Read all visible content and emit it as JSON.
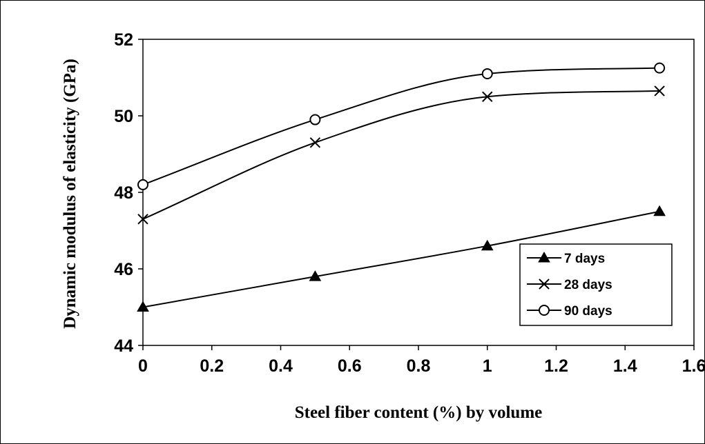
{
  "chart_data": {
    "type": "line",
    "title": "",
    "xlabel": "Steel fiber content (%) by volume",
    "ylabel": "Dynamic modulus of elasticity (GPa)",
    "xlim": [
      0,
      1.6
    ],
    "ylim": [
      44,
      52
    ],
    "xticks": [
      "0",
      "0.2",
      "0.4",
      "0.6",
      "0.8",
      "1",
      "1.2",
      "1.4",
      "1.6"
    ],
    "yticks": [
      "44",
      "46",
      "48",
      "50",
      "52"
    ],
    "x": [
      0,
      0.5,
      1,
      1.5
    ],
    "smooth": true,
    "grid": false,
    "legend_position": "lower-right",
    "series": [
      {
        "name": "7 days",
        "marker": "filled-triangle",
        "values": [
          45.0,
          45.8,
          46.6,
          47.5
        ]
      },
      {
        "name": "28 days",
        "marker": "x",
        "values": [
          47.3,
          49.3,
          50.5,
          50.65
        ]
      },
      {
        "name": "90 days",
        "marker": "open-circle",
        "values": [
          48.2,
          49.9,
          51.1,
          51.25
        ]
      }
    ]
  }
}
